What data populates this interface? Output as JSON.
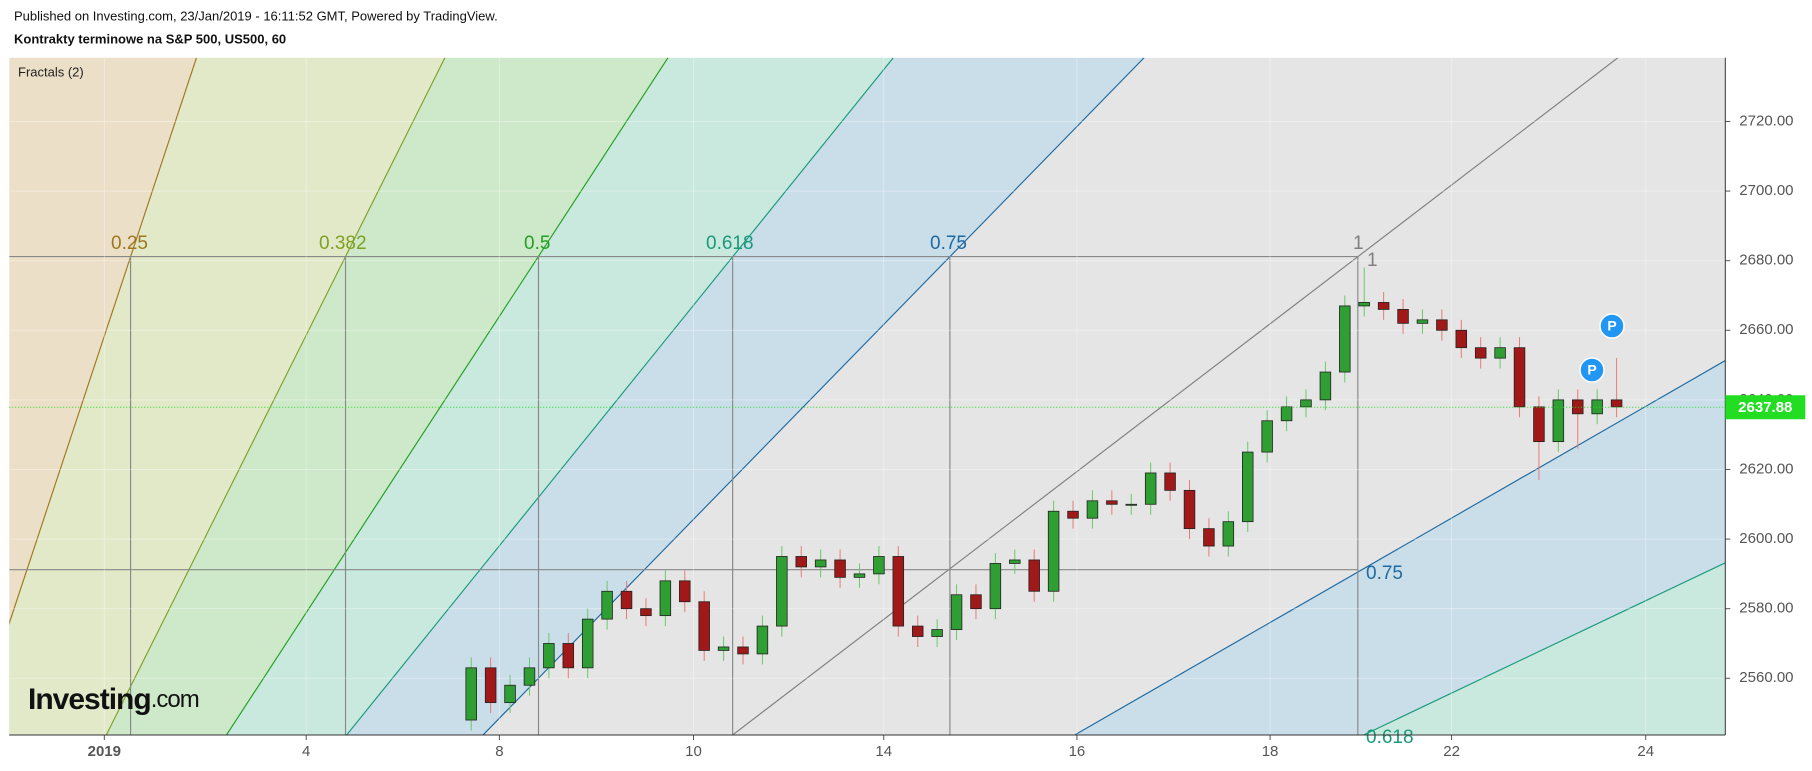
{
  "header": {
    "published": "Published on Investing.com, 23/Jan/2019 - 16:11:52 GMT, Powered by TradingView.",
    "symbol": "Kontrakty terminowe na S&P 500, US500, 60"
  },
  "chart_data": {
    "type": "candlestick",
    "indicator": "Fractals (2)",
    "x": [
      1.7,
      1.9,
      2.1,
      2.3,
      2.5,
      2.7,
      2.9,
      3.1,
      3.3,
      3.5,
      3.7,
      3.9,
      4.1,
      4.3,
      4.5,
      4.7,
      4.9,
      5.1,
      5.3,
      5.5,
      5.7,
      5.9,
      6.1,
      6.3,
      6.5,
      6.7,
      6.9,
      7.1,
      7.3,
      7.5,
      7.7,
      7.9,
      8.1,
      8.3,
      8.5,
      8.7,
      8.9,
      9.1,
      9.3,
      9.5,
      9.7,
      9.9,
      10.1,
      10.3,
      10.5,
      10.7,
      10.9,
      11.1,
      11.3,
      11.5,
      11.7,
      11.9,
      12.1,
      12.3,
      12.5,
      12.7,
      12.9,
      13.1,
      13.3,
      13.5
    ],
    "open": [
      2548,
      2563,
      2553,
      2558,
      2563,
      2570,
      2563,
      2577,
      2585,
      2580,
      2578,
      2588,
      2582,
      2568,
      2569,
      2567,
      2575,
      2595,
      2592,
      2594,
      2589,
      2590,
      2595,
      2575,
      2572,
      2574,
      2584,
      2580,
      2593,
      2594,
      2585,
      2608,
      2606,
      2611,
      2610,
      2610,
      2619,
      2614,
      2603,
      2598,
      2605,
      2625,
      2634,
      2638,
      2640,
      2648,
      2667,
      2668,
      2666,
      2662,
      2663,
      2660,
      2655,
      2652,
      2655,
      2638,
      2628,
      2640,
      2636,
      2640
    ],
    "high": [
      2566,
      2566,
      2561,
      2566,
      2573,
      2573,
      2580,
      2588,
      2588,
      2583,
      2591,
      2591,
      2585,
      2572,
      2572,
      2578,
      2598,
      2598,
      2597,
      2597,
      2593,
      2598,
      2598,
      2578,
      2577,
      2587,
      2587,
      2596,
      2597,
      2597,
      2611,
      2611,
      2614,
      2614,
      2613,
      2622,
      2622,
      2617,
      2606,
      2608,
      2628,
      2637,
      2641,
      2643,
      2651,
      2670,
      2678,
      2671,
      2669,
      2666,
      2666,
      2663,
      2658,
      2658,
      2658,
      2641,
      2643,
      2643,
      2643,
      2652
    ],
    "low": [
      2545,
      2550,
      2550,
      2555,
      2560,
      2560,
      2560,
      2574,
      2577,
      2575,
      2575,
      2579,
      2565,
      2565,
      2564,
      2564,
      2572,
      2589,
      2589,
      2586,
      2586,
      2587,
      2572,
      2569,
      2569,
      2571,
      2577,
      2577,
      2590,
      2582,
      2582,
      2603,
      2603,
      2607,
      2607,
      2607,
      2611,
      2600,
      2595,
      2595,
      2602,
      2622,
      2631,
      2635,
      2637,
      2645,
      2664,
      2663,
      2659,
      2659,
      2657,
      2652,
      2649,
      2649,
      2635,
      2617,
      2625,
      2626,
      2633,
      2635
    ],
    "close": [
      2563,
      2553,
      2558,
      2563,
      2570,
      2563,
      2577,
      2585,
      2580,
      2578,
      2588,
      2582,
      2568,
      2569,
      2567,
      2575,
      2595,
      2592,
      2594,
      2589,
      2590,
      2595,
      2575,
      2572,
      2574,
      2584,
      2580,
      2593,
      2594,
      2585,
      2608,
      2606,
      2611,
      2610,
      2610,
      2619,
      2614,
      2603,
      2598,
      2605,
      2625,
      2634,
      2638,
      2640,
      2648,
      2667,
      2668,
      2666,
      2662,
      2663,
      2660,
      2655,
      2652,
      2655,
      2638,
      2628,
      2640,
      2636,
      2640,
      2638
    ],
    "up_color": "#2f9e33",
    "down_color": "#a01818",
    "xlim": [
      -3.06,
      14.62
    ],
    "xticks": [
      {
        "value": -2.08,
        "label": "2019"
      },
      {
        "value": 0,
        "label": "4"
      },
      {
        "value": 1.99,
        "label": "8"
      },
      {
        "value": 3.99,
        "label": "10"
      },
      {
        "value": 5.95,
        "label": "14"
      },
      {
        "value": 7.94,
        "label": "16"
      },
      {
        "value": 9.93,
        "label": "18"
      },
      {
        "value": 11.8,
        "label": "22"
      },
      {
        "value": 13.8,
        "label": "24"
      }
    ],
    "ylim": [
      2543.7,
      2738.3
    ],
    "yticks": [
      {
        "value": 2560,
        "label": "2560.00"
      },
      {
        "value": 2580,
        "label": "2580.00"
      },
      {
        "value": 2600,
        "label": "2600.00"
      },
      {
        "value": 2620,
        "label": "2620.00"
      },
      {
        "value": 2640,
        "label": "2640.00"
      },
      {
        "value": 2660,
        "label": "2660.00"
      },
      {
        "value": 2680,
        "label": "2680.00"
      },
      {
        "value": 2700,
        "label": "2700.00"
      },
      {
        "value": 2720,
        "label": "2720.00"
      }
    ],
    "grid": true,
    "last_price": {
      "value": 2637.88,
      "label": "2637.88",
      "color": "#22dd22"
    },
    "fib_labels": [
      "0.25",
      "0.382",
      "0.5",
      "0.618",
      "0.75",
      "1"
    ],
    "pivot_label": "P",
    "watermark": {
      "brand": "Investing",
      "suffix": ".com"
    }
  }
}
